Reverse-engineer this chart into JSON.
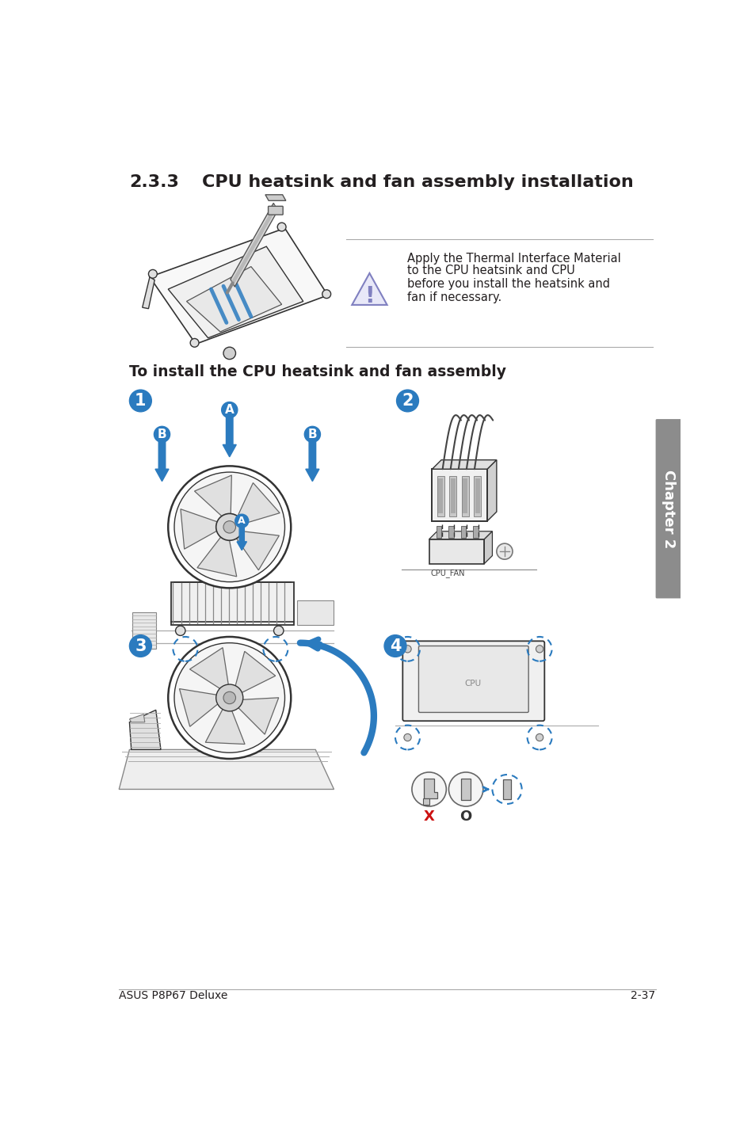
{
  "title_section": "2.3.3",
  "title_text": "CPU heatsink and fan assembly installation",
  "subtitle": "To install the CPU heatsink and fan assembly",
  "warning_text_line1": "Apply the Thermal Interface Material",
  "warning_text_line2": "to the CPU heatsink and CPU",
  "warning_text_line3": "before you install the heatsink and",
  "warning_text_line4": "fan if necessary.",
  "footer_left": "ASUS P8P67 Deluxe",
  "footer_right": "2-37",
  "chapter_tab": "Chapter 2",
  "bg_color": "#ffffff",
  "text_color": "#231f20",
  "blue_color": "#2b7bbf",
  "tab_color": "#8c8c8c",
  "warn_tri_fill": "#e8e8f8",
  "warn_tri_edge": "#8080c0",
  "line_color": "#333333",
  "dashed_color": "#2b7bbf",
  "gray_line": "#aaaaaa"
}
